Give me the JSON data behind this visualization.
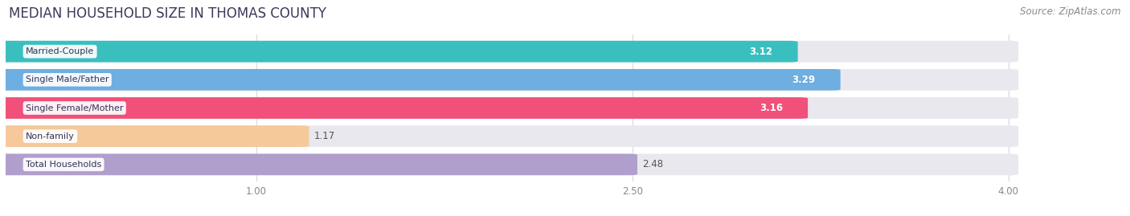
{
  "title": "MEDIAN HOUSEHOLD SIZE IN THOMAS COUNTY",
  "source": "Source: ZipAtlas.com",
  "categories": [
    "Married-Couple",
    "Single Male/Father",
    "Single Female/Mother",
    "Non-family",
    "Total Households"
  ],
  "values": [
    3.12,
    3.29,
    3.16,
    1.17,
    2.48
  ],
  "bar_colors": [
    "#3abfbf",
    "#6eaee0",
    "#f0507a",
    "#f5c99a",
    "#b09fcc"
  ],
  "value_label_colors": [
    "white",
    "white",
    "white",
    "#555555",
    "#555555"
  ],
  "xlim_min": 0.0,
  "xlim_max": 4.35,
  "xdata_max": 4.0,
  "xticks": [
    1.0,
    2.5,
    4.0
  ],
  "background_color": "#ffffff",
  "bar_background": "#e8e8ee",
  "title_fontsize": 12,
  "source_fontsize": 8.5,
  "title_color": "#3a3a5a",
  "source_color": "#888888"
}
